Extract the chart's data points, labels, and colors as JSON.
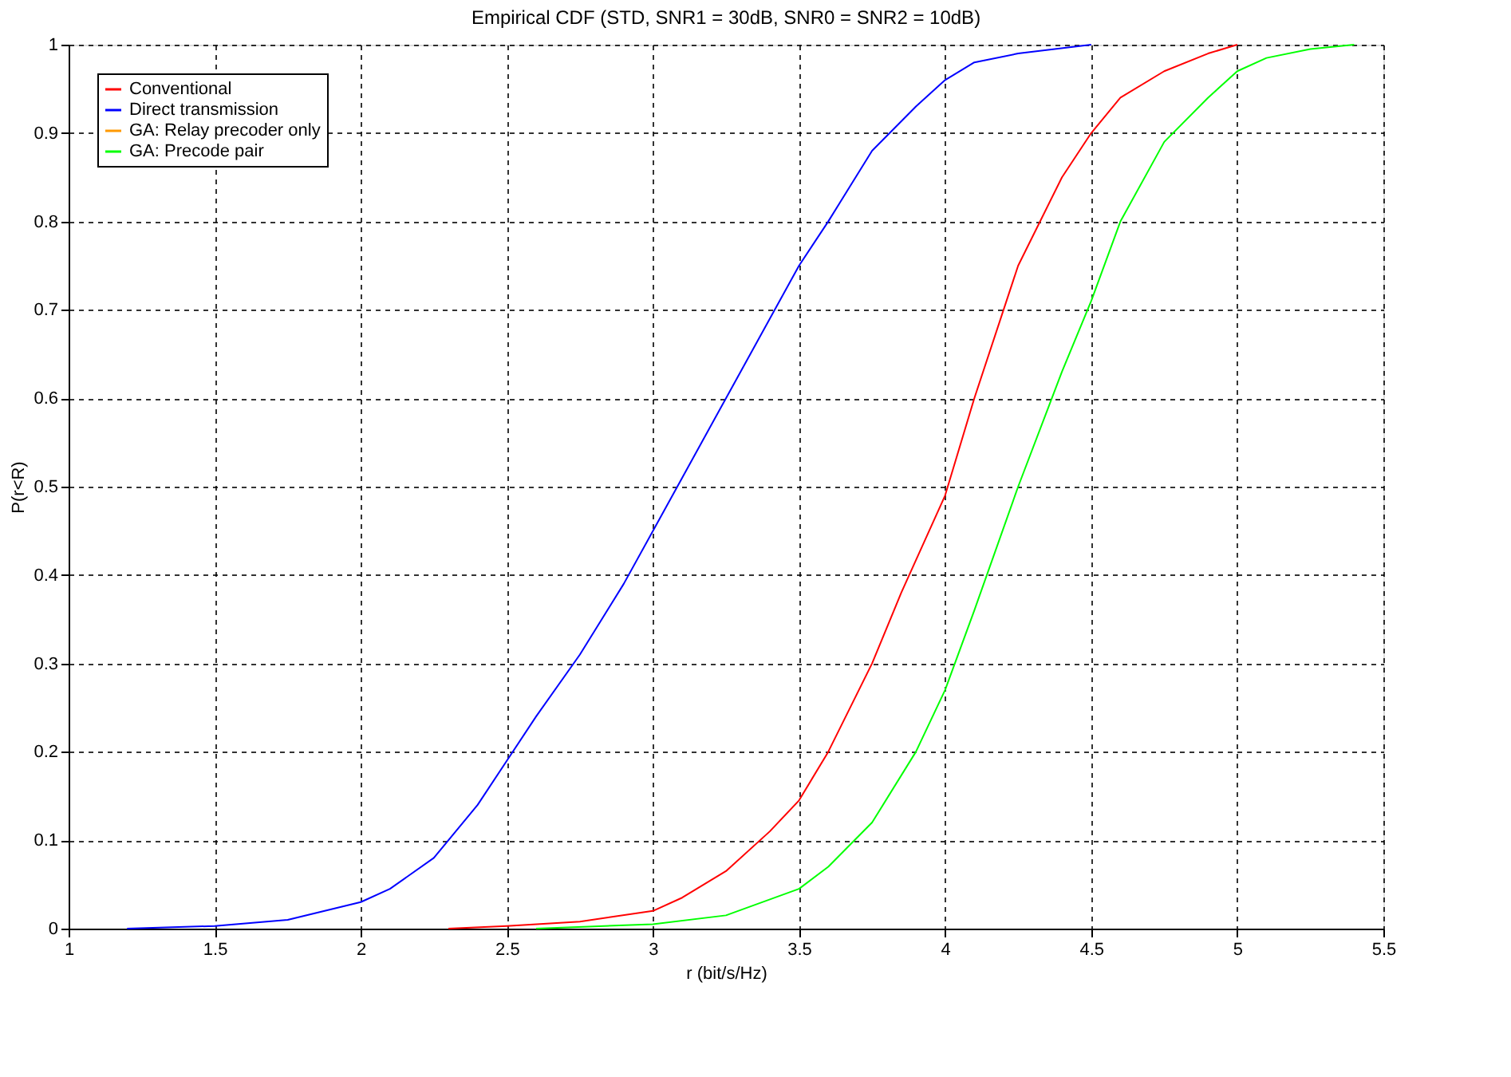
{
  "chart_data": {
    "type": "line",
    "title": "Empirical CDF (STD, SNR1 = 30dB, SNR0 = SNR2 = 10dB)",
    "xlabel": "r (bit/s/Hz)",
    "ylabel": "P(r<R)",
    "xlim": [
      1,
      5.5
    ],
    "xticks": [
      1,
      1.5,
      2,
      2.5,
      3,
      3.5,
      4,
      4.5,
      5,
      5.5
    ],
    "ylim": [
      0,
      1
    ],
    "yticks": [
      0,
      0.1,
      0.2,
      0.3,
      0.4,
      0.5,
      0.6,
      0.7,
      0.8,
      0.9,
      1
    ],
    "grid": true,
    "legend": "top left",
    "line_style": "solid",
    "marker": "none",
    "series": [
      {
        "name": "Conventional",
        "color": "#ff0000",
        "x": [
          2.3,
          2.5,
          2.75,
          3.0,
          3.1,
          3.25,
          3.4,
          3.5,
          3.6,
          3.75,
          3.85,
          4.0,
          4.1,
          4.25,
          4.4,
          4.5,
          4.6,
          4.75,
          4.9,
          5.0
        ],
        "values": [
          0,
          0.003,
          0.008,
          0.02,
          0.035,
          0.065,
          0.11,
          0.145,
          0.2,
          0.3,
          0.38,
          0.49,
          0.6,
          0.75,
          0.85,
          0.9,
          0.94,
          0.97,
          0.99,
          1.0
        ]
      },
      {
        "name": "Direct transmission",
        "color": "#0000ff",
        "x": [
          1.2,
          1.5,
          1.75,
          2.0,
          2.1,
          2.25,
          2.4,
          2.5,
          2.6,
          2.75,
          2.9,
          3.0,
          3.1,
          3.25,
          3.4,
          3.5,
          3.6,
          3.75,
          3.9,
          4.0,
          4.1,
          4.25,
          4.5
        ],
        "values": [
          0,
          0.003,
          0.01,
          0.03,
          0.045,
          0.08,
          0.14,
          0.19,
          0.24,
          0.31,
          0.39,
          0.45,
          0.51,
          0.6,
          0.69,
          0.75,
          0.8,
          0.88,
          0.93,
          0.96,
          0.98,
          0.99,
          1.0
        ]
      },
      {
        "name": "GA: Relay precoder only",
        "color": "#ff9900"
      },
      {
        "name": "GA: Precode pair",
        "color": "#00ff00",
        "x": [
          2.6,
          3.0,
          3.25,
          3.5,
          3.6,
          3.75,
          3.9,
          4.0,
          4.1,
          4.25,
          4.4,
          4.5,
          4.6,
          4.75,
          4.9,
          5.0,
          5.1,
          5.25,
          5.4
        ],
        "values": [
          0,
          0.005,
          0.015,
          0.045,
          0.07,
          0.12,
          0.2,
          0.27,
          0.36,
          0.5,
          0.63,
          0.71,
          0.8,
          0.89,
          0.94,
          0.97,
          0.985,
          0.995,
          1.0
        ]
      }
    ]
  }
}
